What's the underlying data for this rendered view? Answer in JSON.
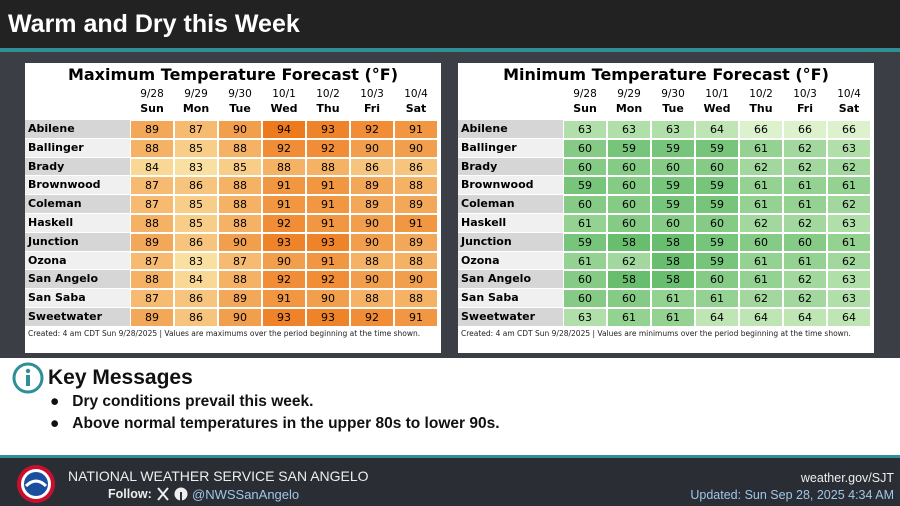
{
  "header": {
    "title": "Warm and Dry this Week"
  },
  "max_table": {
    "title": "Maximum Temperature Forecast (°F)",
    "dates": [
      "9/28",
      "9/29",
      "9/30",
      "10/1",
      "10/2",
      "10/3",
      "10/4"
    ],
    "days": [
      "Sun",
      "Mon",
      "Tue",
      "Wed",
      "Thu",
      "Fri",
      "Sat"
    ],
    "rows": [
      {
        "city": "Abilene",
        "values": [
          89,
          87,
          90,
          94,
          93,
          92,
          91
        ]
      },
      {
        "city": "Ballinger",
        "values": [
          88,
          85,
          88,
          92,
          92,
          90,
          90
        ]
      },
      {
        "city": "Brady",
        "values": [
          84,
          83,
          85,
          88,
          88,
          86,
          86
        ]
      },
      {
        "city": "Brownwood",
        "values": [
          87,
          86,
          88,
          91,
          91,
          89,
          88
        ]
      },
      {
        "city": "Coleman",
        "values": [
          87,
          85,
          88,
          91,
          91,
          89,
          89
        ]
      },
      {
        "city": "Haskell",
        "values": [
          88,
          85,
          88,
          92,
          91,
          90,
          91
        ]
      },
      {
        "city": "Junction",
        "values": [
          89,
          86,
          90,
          93,
          93,
          90,
          89
        ]
      },
      {
        "city": "Ozona",
        "values": [
          87,
          83,
          87,
          90,
          91,
          88,
          88
        ]
      },
      {
        "city": "San Angelo",
        "values": [
          88,
          84,
          88,
          92,
          92,
          90,
          90
        ]
      },
      {
        "city": "San Saba",
        "values": [
          87,
          86,
          89,
          91,
          90,
          88,
          88
        ]
      },
      {
        "city": "Sweetwater",
        "values": [
          89,
          86,
          90,
          93,
          93,
          92,
          91
        ]
      }
    ],
    "footnote": "Created: 4 am CDT Sun 9/28/2025  |  Values are maximums over the period beginning at the time shown."
  },
  "min_table": {
    "title": "Minimum Temperature Forecast (°F)",
    "dates": [
      "9/28",
      "9/29",
      "9/30",
      "10/1",
      "10/2",
      "10/3",
      "10/4"
    ],
    "days": [
      "Sun",
      "Mon",
      "Tue",
      "Wed",
      "Thu",
      "Fri",
      "Sat"
    ],
    "rows": [
      {
        "city": "Abilene",
        "values": [
          63,
          63,
          63,
          64,
          66,
          66,
          66
        ]
      },
      {
        "city": "Ballinger",
        "values": [
          60,
          59,
          59,
          59,
          61,
          62,
          63
        ]
      },
      {
        "city": "Brady",
        "values": [
          60,
          60,
          60,
          60,
          62,
          62,
          62
        ]
      },
      {
        "city": "Brownwood",
        "values": [
          59,
          60,
          59,
          59,
          61,
          61,
          61
        ]
      },
      {
        "city": "Coleman",
        "values": [
          60,
          60,
          59,
          59,
          61,
          61,
          62
        ]
      },
      {
        "city": "Haskell",
        "values": [
          61,
          60,
          60,
          60,
          62,
          62,
          63
        ]
      },
      {
        "city": "Junction",
        "values": [
          59,
          58,
          58,
          59,
          60,
          60,
          61
        ]
      },
      {
        "city": "Ozona",
        "values": [
          61,
          62,
          58,
          59,
          61,
          61,
          62
        ]
      },
      {
        "city": "San Angelo",
        "values": [
          60,
          58,
          58,
          60,
          61,
          62,
          63
        ]
      },
      {
        "city": "San Saba",
        "values": [
          60,
          60,
          61,
          61,
          62,
          62,
          63
        ]
      },
      {
        "city": "Sweetwater",
        "values": [
          63,
          61,
          61,
          64,
          64,
          64,
          64
        ]
      }
    ],
    "footnote": "Created: 4 am CDT Sun 9/28/2025  |  Values are minimums over the period beginning at the time shown."
  },
  "key_messages": {
    "title": "Key Messages",
    "items": [
      "Dry conditions prevail this week.",
      "Above normal temperatures in the upper 80s to lower 90s."
    ]
  },
  "footer": {
    "org": "NATIONAL WEATHER SERVICE SAN ANGELO",
    "follow_label": "Follow:",
    "handle": "@NWSSanAngelo",
    "url": "weather.gov/SJT",
    "updated": "Updated: Sun Sep 28, 2025 4:34 AM"
  }
}
